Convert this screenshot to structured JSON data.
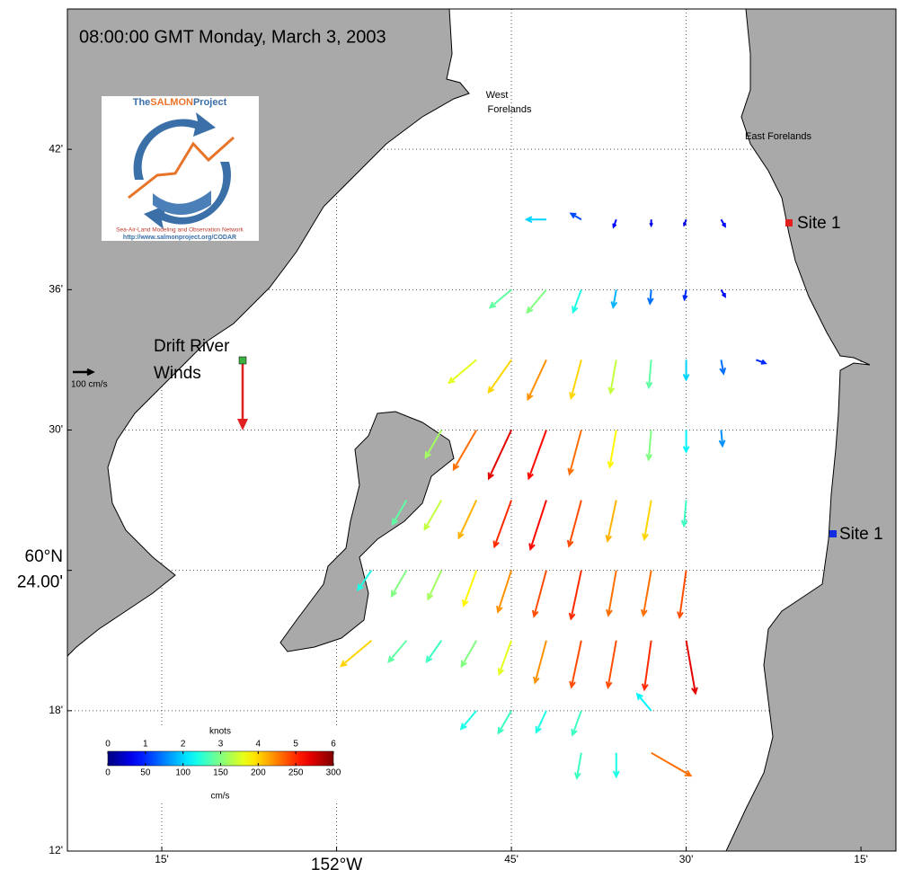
{
  "map": {
    "title": "08:00:00 GMT Monday, March 3, 2003",
    "xlim": [
      -152.385,
      -151.2
    ],
    "ylim": [
      60.2,
      60.8
    ],
    "xticks": [
      {
        "value": -152.25,
        "label": "15'"
      },
      {
        "value": -152,
        "label": "152°W"
      },
      {
        "value": -151.75,
        "label": "45'"
      },
      {
        "value": -151.5,
        "label": "30'"
      },
      {
        "value": -151.25,
        "label": "15'"
      }
    ],
    "yticks": [
      {
        "value": 60.2,
        "label": "12'"
      },
      {
        "value": 60.3,
        "label": "18'"
      },
      {
        "value": 60.4,
        "label": "24.00'"
      },
      {
        "value": 60.5,
        "label": "30'"
      },
      {
        "value": 60.6,
        "label": "36'"
      },
      {
        "value": 60.7,
        "label": "42'"
      }
    ],
    "y_major_label": "60°N",
    "grid": true,
    "place_labels": {
      "west_forelands": [
        "West",
        "Forelands"
      ],
      "east_forelands": "East Forelands",
      "site_north": "Site 1",
      "site_south": "Site 1",
      "drift_river": [
        "Drift River",
        "Winds"
      ]
    },
    "reference_speed": 100,
    "reference_label": "100 cm/s",
    "logo": {
      "title_parts": [
        "The",
        "SALMON",
        "Project"
      ],
      "subtitle": "Sea-Air-Land Modeling and Observation Network",
      "url": "http://www.salmonproject.org/CODAR"
    },
    "colorbar": {
      "top_title": "knots",
      "top_lim": [
        0,
        6
      ],
      "top_ticks": [
        0,
        1,
        2,
        3,
        4,
        5,
        6
      ],
      "bottom_title": "cm/s",
      "lim": [
        0,
        300
      ],
      "ticks": [
        0,
        50,
        100,
        150,
        200,
        250,
        300
      ]
    },
    "vectors": [
      [
        -151.7,
        60.65,
        100,
        270
      ],
      [
        -151.65,
        60.65,
        60,
        300
      ],
      [
        -151.6,
        60.65,
        40,
        200
      ],
      [
        -151.55,
        60.65,
        30,
        180
      ],
      [
        -151.5,
        60.65,
        30,
        200
      ],
      [
        -151.45,
        60.65,
        40,
        150
      ],
      [
        -151.75,
        60.6,
        140,
        230
      ],
      [
        -151.7,
        60.6,
        150,
        220
      ],
      [
        -151.65,
        60.6,
        120,
        200
      ],
      [
        -151.6,
        60.6,
        90,
        190
      ],
      [
        -151.55,
        60.6,
        70,
        185
      ],
      [
        -151.5,
        60.6,
        50,
        190
      ],
      [
        -151.45,
        60.6,
        40,
        150
      ],
      [
        -151.8,
        60.55,
        180,
        230
      ],
      [
        -151.75,
        60.55,
        200,
        215
      ],
      [
        -151.7,
        60.55,
        220,
        205
      ],
      [
        -151.65,
        60.55,
        200,
        195
      ],
      [
        -151.6,
        60.55,
        170,
        190
      ],
      [
        -151.55,
        60.55,
        140,
        185
      ],
      [
        -151.5,
        60.55,
        100,
        180
      ],
      [
        -151.45,
        60.55,
        70,
        170
      ],
      [
        -151.4,
        60.55,
        50,
        110
      ],
      [
        -151.85,
        60.5,
        160,
        210
      ],
      [
        -151.8,
        60.5,
        230,
        210
      ],
      [
        -151.75,
        60.5,
        270,
        205
      ],
      [
        -151.7,
        60.5,
        260,
        200
      ],
      [
        -151.65,
        60.5,
        230,
        195
      ],
      [
        -151.6,
        60.5,
        190,
        190
      ],
      [
        -151.55,
        60.5,
        150,
        185
      ],
      [
        -151.5,
        60.5,
        110,
        180
      ],
      [
        -151.45,
        60.5,
        80,
        175
      ],
      [
        -151.9,
        60.45,
        140,
        210
      ],
      [
        -151.85,
        60.45,
        170,
        210
      ],
      [
        -151.8,
        60.45,
        210,
        205
      ],
      [
        -151.75,
        60.45,
        250,
        200
      ],
      [
        -151.7,
        60.45,
        260,
        198
      ],
      [
        -151.65,
        60.45,
        240,
        195
      ],
      [
        -151.6,
        60.45,
        210,
        192
      ],
      [
        -151.55,
        60.45,
        200,
        190
      ],
      [
        -151.5,
        60.45,
        130,
        185
      ],
      [
        -151.95,
        60.4,
        120,
        215
      ],
      [
        -151.9,
        60.4,
        150,
        210
      ],
      [
        -151.85,
        60.4,
        160,
        205
      ],
      [
        -151.8,
        60.4,
        190,
        200
      ],
      [
        -151.75,
        60.4,
        220,
        198
      ],
      [
        -151.7,
        60.4,
        240,
        195
      ],
      [
        -151.65,
        60.4,
        250,
        192
      ],
      [
        -151.6,
        60.4,
        230,
        190
      ],
      [
        -151.55,
        60.4,
        230,
        190
      ],
      [
        -151.5,
        60.4,
        240,
        188
      ],
      [
        -151.95,
        60.35,
        200,
        230
      ],
      [
        -151.9,
        60.35,
        140,
        220
      ],
      [
        -151.85,
        60.35,
        130,
        215
      ],
      [
        -151.8,
        60.35,
        150,
        210
      ],
      [
        -151.75,
        60.35,
        180,
        200
      ],
      [
        -151.7,
        60.35,
        220,
        195
      ],
      [
        -151.65,
        60.35,
        240,
        192
      ],
      [
        -151.6,
        60.35,
        240,
        190
      ],
      [
        -151.55,
        60.35,
        250,
        188
      ],
      [
        -151.5,
        60.35,
        270,
        170
      ],
      [
        -151.8,
        60.3,
        120,
        220
      ],
      [
        -151.75,
        60.3,
        130,
        210
      ],
      [
        -151.7,
        60.3,
        120,
        205
      ],
      [
        -151.65,
        60.3,
        130,
        200
      ],
      [
        -151.55,
        60.3,
        110,
        320
      ],
      [
        -151.65,
        60.27,
        130,
        190
      ],
      [
        -151.6,
        60.27,
        120,
        180
      ],
      [
        -151.55,
        60.27,
        230,
        120
      ]
    ]
  }
}
